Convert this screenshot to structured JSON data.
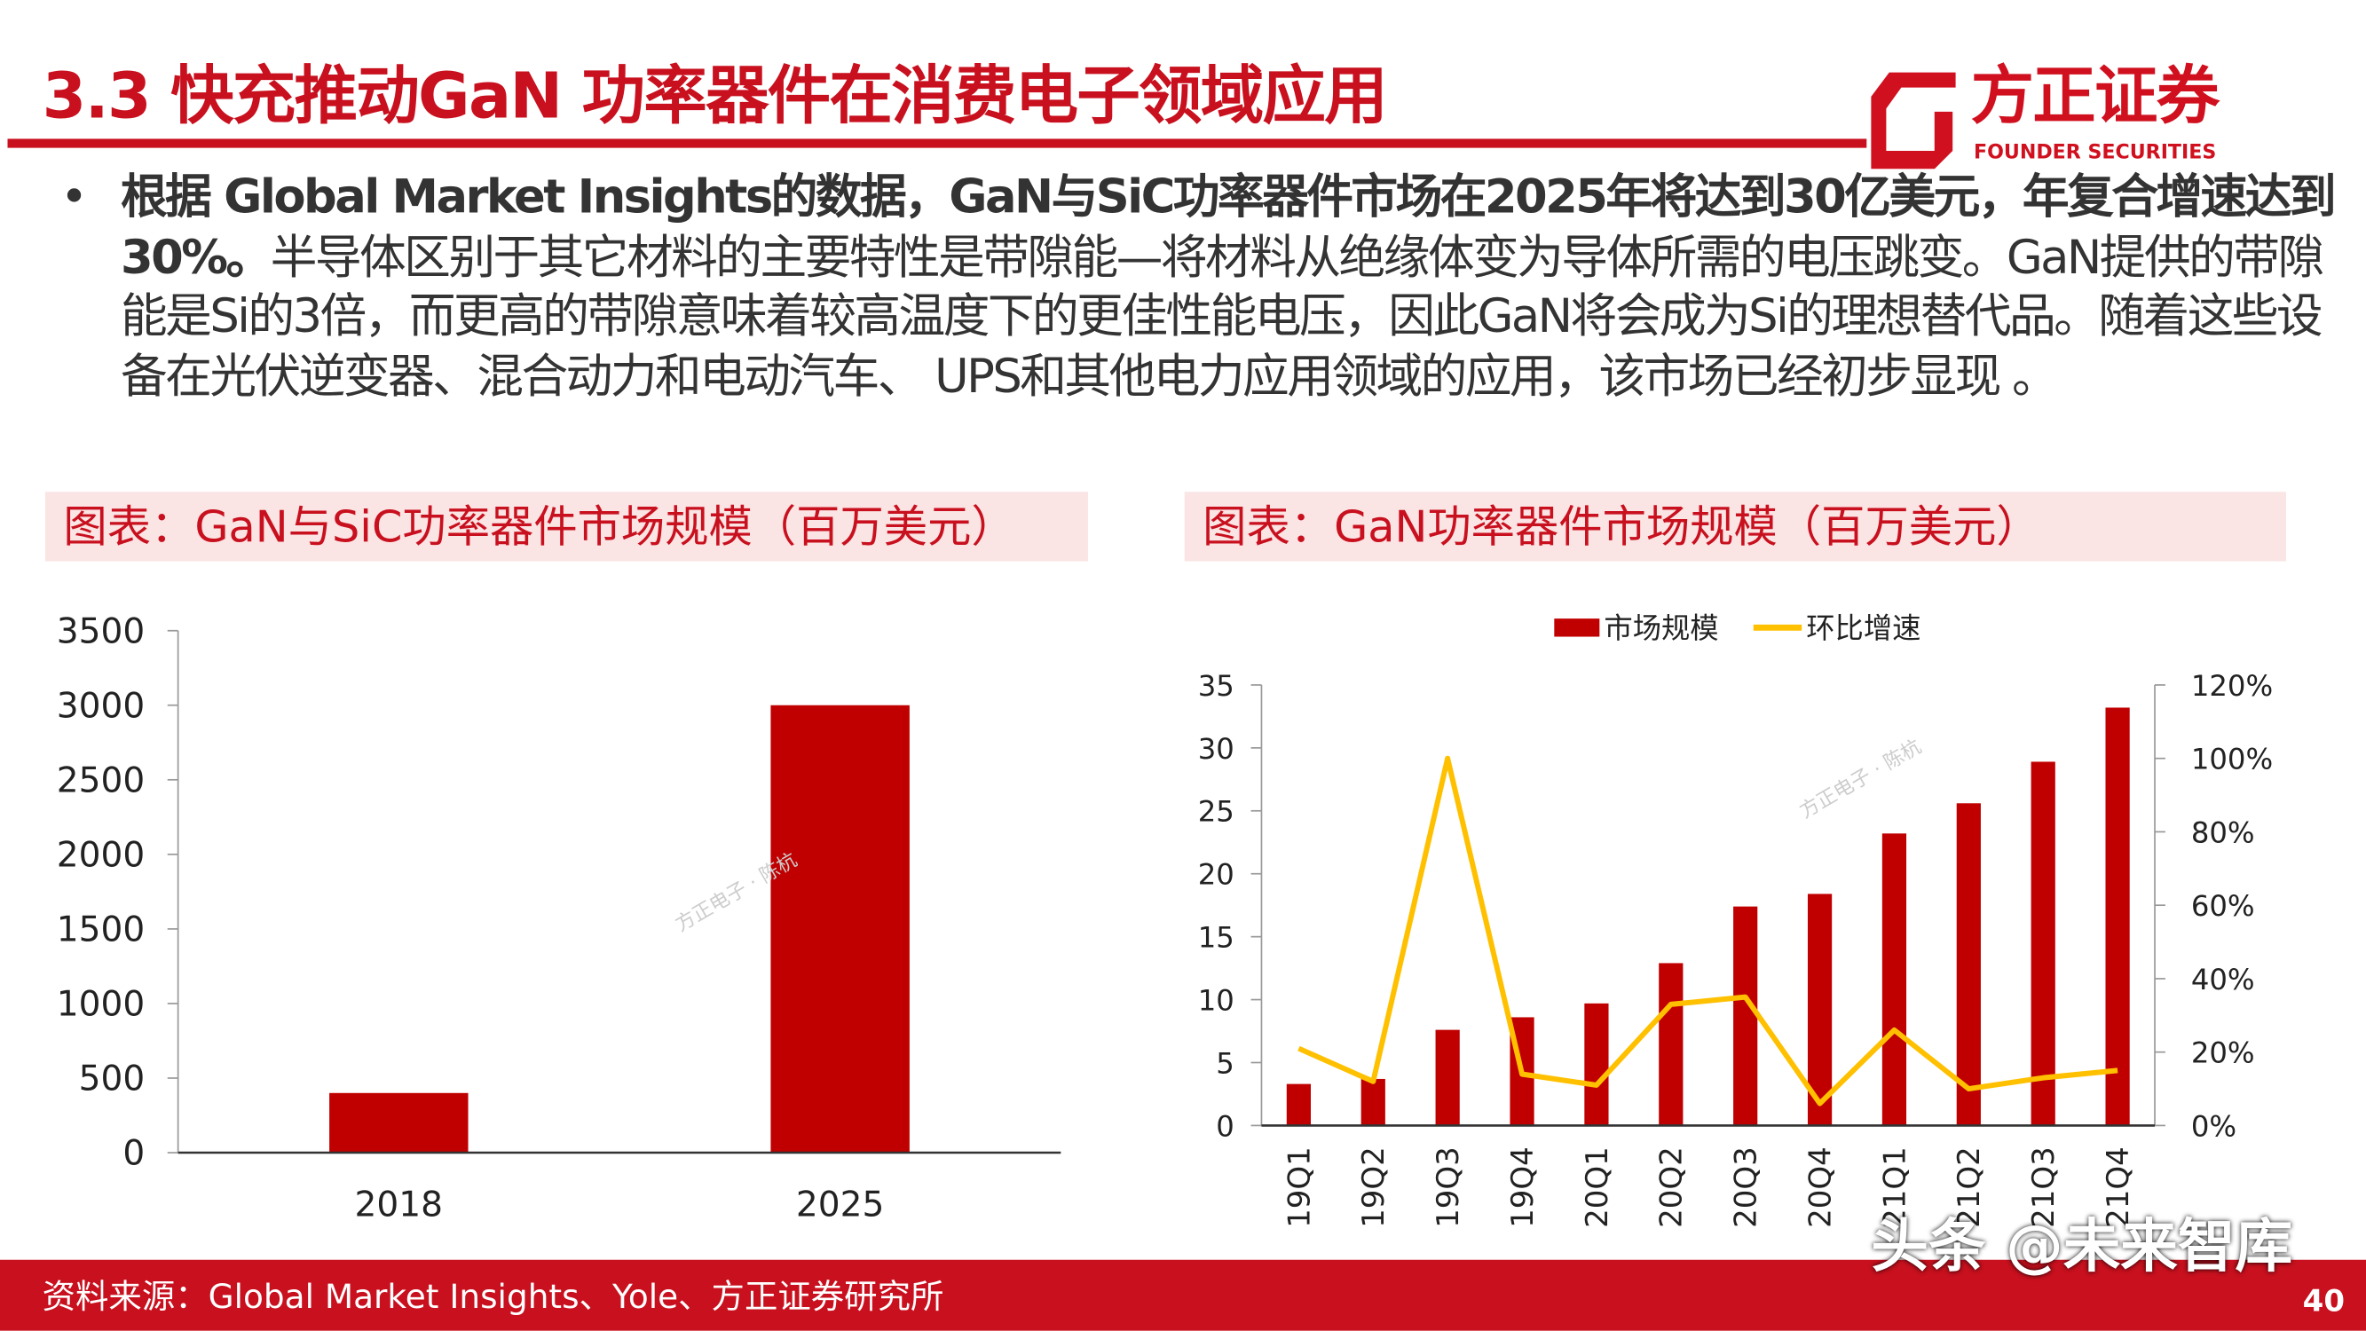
{
  "header": {
    "title": "3.3 快充推动GaN 功率器件在消费电子领域应用",
    "logo_cn": "方正证券",
    "logo_en": "FOUNDER SECURITIES"
  },
  "body": {
    "bold": "根据 Global Market Insights的数据，GaN与SiC功率器件市场在2025年将达到30亿美元，年复合增速达到30%。",
    "normal": "半导体区别于其它材料的主要特性是带隙能—将材料从绝缘体变为导体所需的电压跳变。GaN提供的带隙能是Si的3倍，而更高的带隙意味着较高温度下的更佳性能电压，因此GaN将会成为Si的理想替代品。随着这些设备在光伏逆变器、混合动力和电动汽车、 UPS和其他电力应用领域的应用，该市场已经初步显现 。"
  },
  "captions": {
    "left": "图表：GaN与SiC功率器件市场规模（百万美元）",
    "right": "图表：GaN功率器件市场规模（百万美元）"
  },
  "chart_data": [
    {
      "type": "bar",
      "categories": [
        "2018",
        "2025"
      ],
      "values": [
        400,
        3000
      ],
      "ylim": [
        0,
        3500
      ],
      "yticks": [
        "0",
        "500",
        "1000",
        "1500",
        "2000",
        "2500",
        "3000",
        "3500"
      ],
      "color": "#c00000",
      "watermark": "方正电子 · 陈杭"
    },
    {
      "type": "bar+line",
      "categories": [
        "19Q1",
        "19Q2",
        "19Q3",
        "19Q4",
        "20Q1",
        "20Q2",
        "20Q3",
        "20Q4",
        "21Q1",
        "21Q2",
        "21Q3",
        "21Q4"
      ],
      "series": [
        {
          "name": "市场规模",
          "type": "bar",
          "axis": "left",
          "color": "#c00000",
          "values": [
            3.3,
            3.7,
            7.6,
            8.6,
            9.7,
            12.9,
            17.4,
            18.4,
            23.2,
            25.6,
            28.9,
            33.2
          ]
        },
        {
          "name": "环比增速",
          "type": "line",
          "axis": "right",
          "color": "#ffc000",
          "values": [
            21,
            12,
            100,
            14,
            11,
            33,
            35,
            6,
            26,
            10,
            13,
            15
          ]
        }
      ],
      "ylim_left": [
        0,
        35
      ],
      "yticks_left": [
        "0",
        "5",
        "10",
        "15",
        "20",
        "25",
        "30",
        "35"
      ],
      "ylim_right": [
        0,
        120
      ],
      "yticks_right": [
        "0%",
        "20%",
        "40%",
        "60%",
        "80%",
        "100%",
        "120%"
      ],
      "legend": "top",
      "watermark": "方正电子 · 陈杭"
    }
  ],
  "footer": {
    "source": "资料来源：Global Market Insights、Yole、方正证券研究所",
    "watermark": "头条 @未来智库",
    "page": "40"
  }
}
